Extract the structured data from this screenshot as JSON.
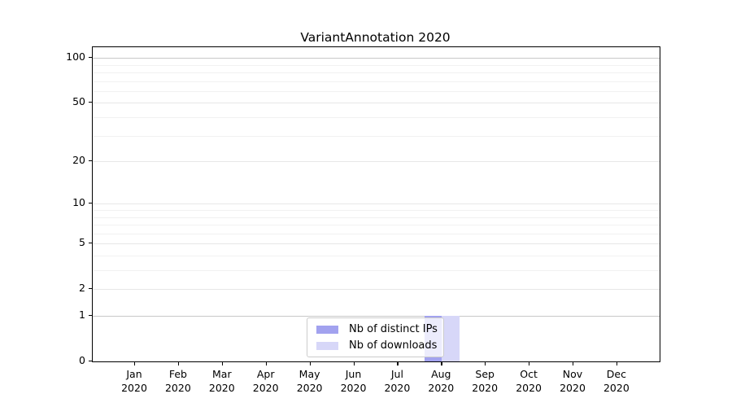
{
  "chart_data": {
    "type": "bar",
    "title": "VariantAnnotation 2020",
    "categories": [
      "Jan 2020",
      "Feb 2020",
      "Mar 2020",
      "Apr 2020",
      "May 2020",
      "Jun 2020",
      "Jul 2020",
      "Aug 2020",
      "Sep 2020",
      "Oct 2020",
      "Nov 2020",
      "Dec 2020"
    ],
    "series": [
      {
        "name": "Nb of distinct IPs",
        "color": "#a2a2ef",
        "values": [
          0,
          0,
          0,
          0,
          0,
          0,
          0,
          1,
          0,
          0,
          0,
          0
        ]
      },
      {
        "name": "Nb of downloads",
        "color": "#d7d7f8",
        "values": [
          0,
          0,
          0,
          0,
          0,
          0,
          0,
          1,
          0,
          0,
          0,
          0
        ]
      }
    ],
    "xlabel": "",
    "ylabel": "",
    "yscale": "log1p",
    "ylim": [
      0,
      118
    ],
    "yticks": [
      0,
      1,
      2,
      5,
      10,
      20,
      50,
      100
    ],
    "minor_yticks": [
      3,
      4,
      6,
      7,
      8,
      9,
      30,
      40,
      60,
      70,
      80,
      90
    ],
    "emphasized_gridlines": [
      1,
      100
    ],
    "grid": "on",
    "legend_position": "lower center"
  }
}
